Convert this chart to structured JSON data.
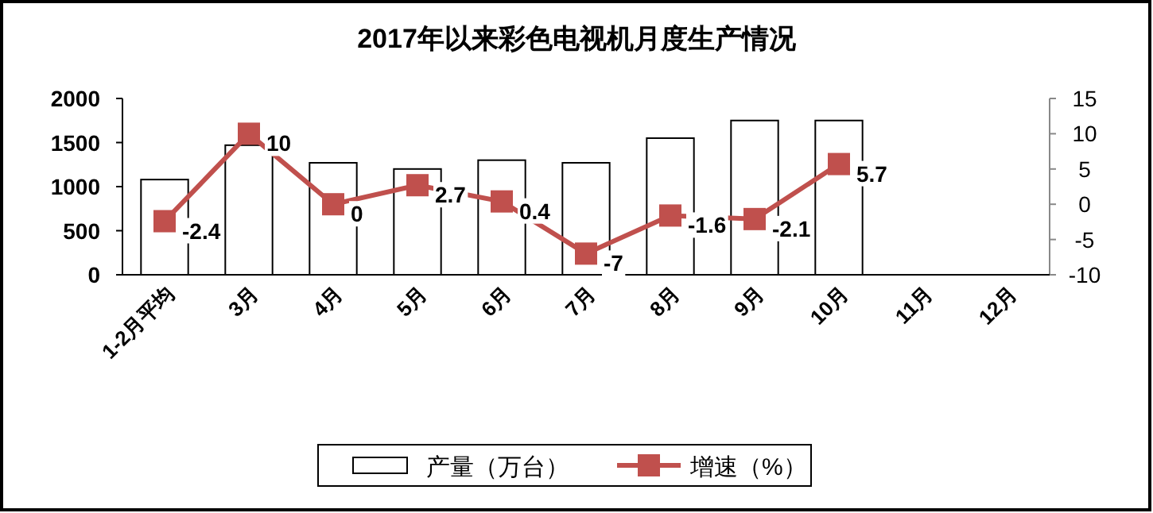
{
  "chart_data": {
    "type": "bar",
    "title": "2017年以来彩色电视机月度生产情况",
    "categories": [
      "1-2月平均",
      "3月",
      "4月",
      "5月",
      "6月",
      "7月",
      "8月",
      "9月",
      "10月",
      "11月",
      "12月"
    ],
    "series": [
      {
        "name": "产量（万台）",
        "color": "#ffffff",
        "values": [
          1080,
          1470,
          1270,
          1200,
          1300,
          1270,
          1550,
          1750,
          1750,
          null,
          null
        ]
      },
      {
        "name": "增速（%）",
        "type": "line",
        "axis": "y2",
        "color": "#c0504d",
        "marker": "square",
        "values": [
          -2.4,
          10,
          0,
          2.7,
          0.4,
          -7,
          -1.6,
          -2.1,
          5.7,
          null,
          null
        ],
        "data_labels": true
      }
    ],
    "ylim": [
      0,
      2000
    ],
    "yticks": [
      0,
      500,
      1000,
      1500,
      2000
    ],
    "y2lim": [
      -10,
      15
    ],
    "y2ticks": [
      -10,
      -5,
      0,
      5,
      10,
      15
    ],
    "grid": false,
    "legend": "bottom"
  }
}
